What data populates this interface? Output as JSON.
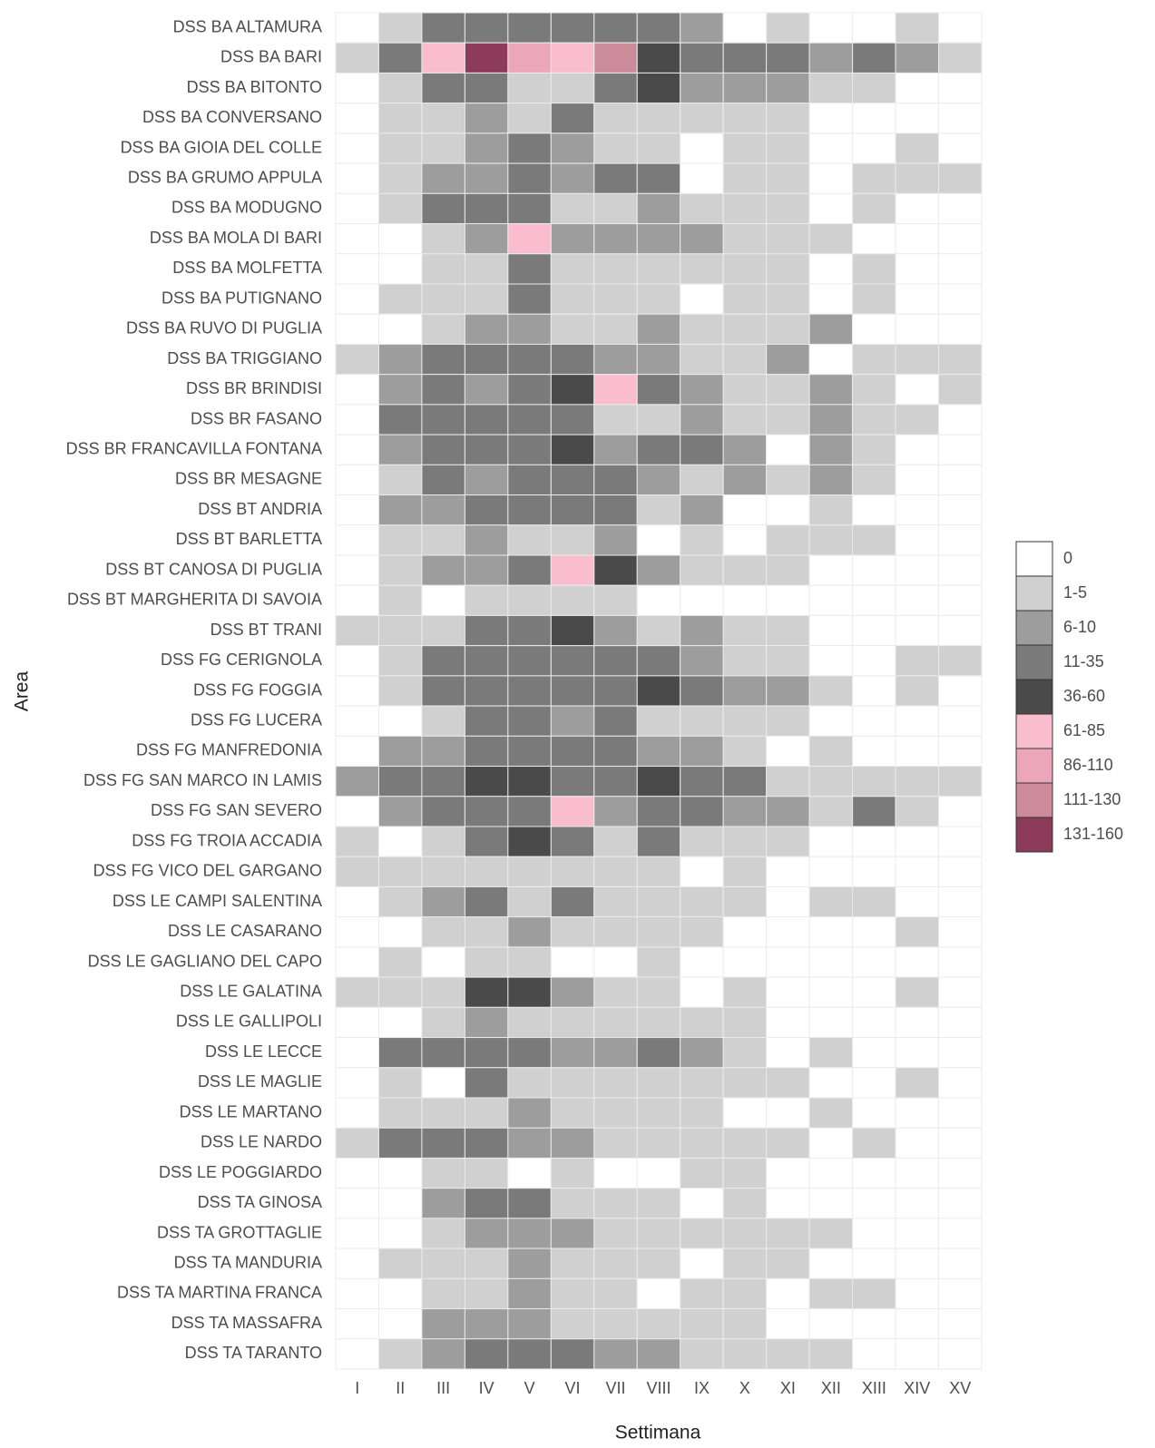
{
  "chart_data": {
    "type": "heatmap",
    "x_label": "Settimana",
    "y_label": "Area",
    "categories": [
      "I",
      "II",
      "III",
      "IV",
      "V",
      "VI",
      "VII",
      "VIII",
      "IX",
      "X",
      "XI",
      "XII",
      "XIII",
      "XIV",
      "XV"
    ],
    "rows": [
      "DSS BA ALTAMURA",
      "DSS BA BARI",
      "DSS BA BITONTO",
      "DSS BA CONVERSANO",
      "DSS BA GIOIA DEL COLLE",
      "DSS BA GRUMO APPULA",
      "DSS BA MODUGNO",
      "DSS BA MOLA DI BARI",
      "DSS BA MOLFETTA",
      "DSS BA PUTIGNANO",
      "DSS BA RUVO DI PUGLIA",
      "DSS BA TRIGGIANO",
      "DSS BR BRINDISI",
      "DSS BR FASANO",
      "DSS BR FRANCAVILLA FONTANA",
      "DSS BR MESAGNE",
      "DSS BT ANDRIA",
      "DSS BT BARLETTA",
      "DSS BT CANOSA DI PUGLIA",
      "DSS BT MARGHERITA DI SAVOIA",
      "DSS BT TRANI",
      "DSS FG CERIGNOLA",
      "DSS FG FOGGIA",
      "DSS FG LUCERA",
      "DSS FG MANFREDONIA",
      "DSS FG SAN MARCO IN LAMIS",
      "DSS FG SAN SEVERO",
      "DSS FG TROIA ACCADIA",
      "DSS FG VICO DEL GARGANO",
      "DSS LE CAMPI SALENTINA",
      "DSS LE CASARANO",
      "DSS LE GAGLIANO DEL CAPO",
      "DSS LE GALATINA",
      "DSS LE GALLIPOLI",
      "DSS LE LECCE",
      "DSS LE MAGLIE",
      "DSS LE MARTANO",
      "DSS LE NARDO",
      "DSS LE POGGIARDO",
      "DSS TA GINOSA",
      "DSS TA GROTTAGLIE",
      "DSS TA MANDURIA",
      "DSS TA MARTINA FRANCA",
      "DSS TA MASSAFRA",
      "DSS TA TARANTO"
    ],
    "levels": [
      {
        "label": "0",
        "color": "#ffffff"
      },
      {
        "label": "1-5",
        "color": "#d0d0d0"
      },
      {
        "label": "6-10",
        "color": "#9d9d9d"
      },
      {
        "label": "11-35",
        "color": "#7a7a7a"
      },
      {
        "label": "36-60",
        "color": "#4a4a4a"
      },
      {
        "label": "61-85",
        "color": "#f9bdcf"
      },
      {
        "label": "86-110",
        "color": "#eba6bb"
      },
      {
        "label": "111-130",
        "color": "#cc8b9b"
      },
      {
        "label": "131-160",
        "color": "#8c3b5b"
      }
    ],
    "matrix": [
      [
        0,
        1,
        3,
        3,
        3,
        3,
        3,
        3,
        2,
        0,
        1,
        0,
        0,
        1,
        0
      ],
      [
        1,
        3,
        5,
        8,
        6,
        5,
        7,
        4,
        3,
        3,
        3,
        2,
        3,
        2,
        1
      ],
      [
        0,
        1,
        3,
        3,
        1,
        1,
        3,
        4,
        2,
        2,
        2,
        1,
        1,
        0,
        0
      ],
      [
        0,
        1,
        1,
        2,
        1,
        3,
        1,
        1,
        1,
        1,
        1,
        0,
        0,
        0,
        0
      ],
      [
        0,
        1,
        1,
        2,
        3,
        2,
        1,
        1,
        0,
        1,
        1,
        0,
        0,
        1,
        0
      ],
      [
        0,
        1,
        2,
        2,
        3,
        2,
        3,
        3,
        0,
        1,
        1,
        0,
        1,
        1,
        1
      ],
      [
        0,
        1,
        3,
        3,
        3,
        1,
        1,
        2,
        1,
        1,
        1,
        0,
        1,
        0,
        0
      ],
      [
        0,
        0,
        1,
        2,
        5,
        2,
        2,
        2,
        2,
        1,
        1,
        1,
        0,
        0,
        0
      ],
      [
        0,
        0,
        1,
        1,
        3,
        1,
        1,
        1,
        1,
        1,
        1,
        0,
        1,
        0,
        0
      ],
      [
        0,
        1,
        1,
        1,
        3,
        1,
        1,
        1,
        0,
        1,
        1,
        0,
        1,
        0,
        0
      ],
      [
        0,
        0,
        1,
        2,
        2,
        1,
        1,
        2,
        1,
        1,
        1,
        2,
        0,
        0,
        0
      ],
      [
        1,
        2,
        3,
        3,
        3,
        3,
        2,
        2,
        1,
        1,
        2,
        0,
        1,
        1,
        1
      ],
      [
        0,
        2,
        3,
        2,
        3,
        4,
        5,
        3,
        2,
        1,
        1,
        2,
        1,
        0,
        1
      ],
      [
        0,
        3,
        3,
        3,
        3,
        3,
        1,
        1,
        2,
        1,
        1,
        2,
        1,
        1,
        0
      ],
      [
        0,
        2,
        3,
        3,
        3,
        4,
        2,
        3,
        3,
        2,
        0,
        2,
        1,
        0,
        0
      ],
      [
        0,
        1,
        3,
        2,
        3,
        3,
        3,
        2,
        1,
        2,
        1,
        2,
        1,
        0,
        0
      ],
      [
        0,
        2,
        2,
        3,
        3,
        3,
        3,
        1,
        2,
        0,
        0,
        1,
        0,
        0,
        0
      ],
      [
        0,
        1,
        1,
        2,
        1,
        1,
        2,
        0,
        1,
        0,
        1,
        1,
        1,
        0,
        0
      ],
      [
        0,
        1,
        2,
        2,
        3,
        5,
        4,
        2,
        1,
        1,
        1,
        0,
        0,
        0,
        0
      ],
      [
        0,
        1,
        0,
        1,
        1,
        1,
        1,
        0,
        0,
        0,
        0,
        0,
        0,
        0,
        0
      ],
      [
        1,
        1,
        1,
        3,
        3,
        4,
        2,
        1,
        2,
        1,
        1,
        0,
        0,
        0,
        0
      ],
      [
        0,
        1,
        3,
        3,
        3,
        3,
        3,
        3,
        2,
        1,
        1,
        0,
        0,
        1,
        1
      ],
      [
        0,
        1,
        3,
        3,
        3,
        3,
        3,
        4,
        3,
        2,
        2,
        1,
        0,
        1,
        0
      ],
      [
        0,
        0,
        1,
        3,
        3,
        2,
        3,
        1,
        1,
        1,
        1,
        0,
        0,
        0,
        0
      ],
      [
        0,
        2,
        2,
        3,
        3,
        3,
        3,
        2,
        2,
        1,
        0,
        1,
        0,
        0,
        0
      ],
      [
        2,
        3,
        3,
        4,
        4,
        3,
        3,
        4,
        3,
        3,
        1,
        1,
        1,
        1,
        1
      ],
      [
        0,
        2,
        3,
        3,
        3,
        5,
        2,
        3,
        3,
        2,
        2,
        1,
        3,
        1,
        0
      ],
      [
        1,
        0,
        1,
        3,
        4,
        3,
        1,
        3,
        1,
        1,
        1,
        0,
        0,
        0,
        0
      ],
      [
        1,
        1,
        1,
        1,
        1,
        1,
        1,
        1,
        0,
        1,
        0,
        0,
        0,
        0,
        0
      ],
      [
        0,
        1,
        2,
        3,
        1,
        3,
        1,
        1,
        1,
        1,
        0,
        1,
        1,
        0,
        0
      ],
      [
        0,
        0,
        1,
        1,
        2,
        1,
        1,
        1,
        1,
        0,
        0,
        0,
        0,
        1,
        0
      ],
      [
        0,
        1,
        0,
        1,
        1,
        0,
        0,
        1,
        0,
        0,
        0,
        0,
        0,
        0,
        0
      ],
      [
        1,
        1,
        1,
        4,
        4,
        2,
        1,
        1,
        0,
        1,
        0,
        0,
        0,
        1,
        0
      ],
      [
        0,
        0,
        1,
        2,
        1,
        1,
        1,
        1,
        1,
        1,
        0,
        0,
        0,
        0,
        0
      ],
      [
        0,
        3,
        3,
        3,
        3,
        2,
        2,
        3,
        2,
        1,
        0,
        1,
        0,
        0,
        0
      ],
      [
        0,
        1,
        0,
        3,
        1,
        1,
        1,
        1,
        1,
        1,
        1,
        0,
        0,
        1,
        0
      ],
      [
        0,
        1,
        1,
        1,
        2,
        1,
        1,
        1,
        1,
        0,
        0,
        1,
        0,
        0,
        0
      ],
      [
        1,
        3,
        3,
        3,
        2,
        2,
        1,
        1,
        1,
        1,
        1,
        0,
        1,
        0,
        0
      ],
      [
        0,
        0,
        1,
        1,
        0,
        1,
        0,
        0,
        1,
        1,
        0,
        0,
        0,
        0,
        0
      ],
      [
        0,
        0,
        2,
        3,
        3,
        1,
        1,
        1,
        0,
        1,
        0,
        0,
        0,
        0,
        0
      ],
      [
        0,
        0,
        1,
        2,
        2,
        2,
        1,
        1,
        1,
        1,
        1,
        1,
        0,
        0,
        0
      ],
      [
        0,
        1,
        1,
        1,
        2,
        1,
        1,
        1,
        0,
        1,
        1,
        0,
        0,
        0,
        0
      ],
      [
        0,
        0,
        1,
        1,
        2,
        1,
        1,
        0,
        1,
        1,
        0,
        1,
        1,
        0,
        0
      ],
      [
        0,
        0,
        2,
        2,
        2,
        1,
        1,
        1,
        1,
        1,
        0,
        0,
        0,
        0,
        0
      ],
      [
        0,
        1,
        2,
        3,
        3,
        3,
        2,
        2,
        1,
        1,
        1,
        1,
        0,
        0,
        0
      ]
    ]
  }
}
